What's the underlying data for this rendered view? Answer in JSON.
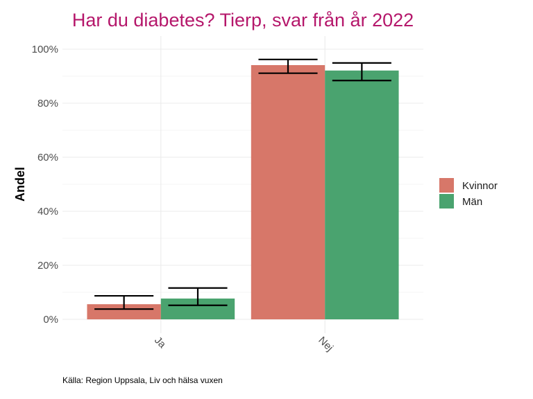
{
  "chart_data": {
    "type": "bar",
    "title": "Har du diabetes? Tierp, svar från år 2022",
    "xlabel": "",
    "ylabel": "Andel",
    "categories": [
      "Ja",
      "Nej"
    ],
    "series": [
      {
        "name": "Kvinnor",
        "color": "#d77769",
        "values": [
          5.6,
          94.1
        ],
        "ci_low": [
          3.8,
          91.1
        ],
        "ci_high": [
          8.7,
          96.2
        ]
      },
      {
        "name": "Män",
        "color": "#4aa36f",
        "values": [
          7.7,
          92.1
        ],
        "ci_low": [
          5.2,
          88.4
        ],
        "ci_high": [
          11.6,
          94.9
        ]
      }
    ],
    "ylim": [
      0,
      100
    ],
    "yticks": [
      0,
      20,
      40,
      60,
      80,
      100
    ],
    "ytick_labels": [
      "0%",
      "20%",
      "40%",
      "60%",
      "80%",
      "100%"
    ],
    "grid": true,
    "legend_position": "right",
    "caption": "Källa: Region Uppsala, Liv och hälsa vuxen"
  }
}
